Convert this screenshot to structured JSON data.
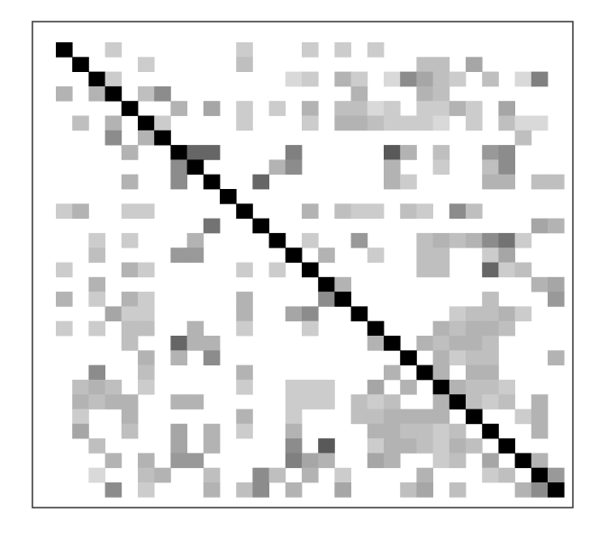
{
  "chart_data": {
    "type": "heatmap",
    "n": 31,
    "title": "",
    "xlabel": "",
    "ylabel": "",
    "value_range": [
      0,
      1
    ],
    "colors": {
      "low": "#ffffff",
      "high": "#000000",
      "frame": "#333333",
      "background": "#ffffff"
    },
    "grid": false,
    "legend": "none",
    "cells": [
      [
        0,
        0,
        1.0
      ],
      [
        0,
        3,
        0.2
      ],
      [
        0,
        11,
        0.2
      ],
      [
        0,
        15,
        0.2
      ],
      [
        0,
        17,
        0.2
      ],
      [
        0,
        19,
        0.2
      ],
      [
        1,
        1,
        1.0
      ],
      [
        1,
        5,
        0.2
      ],
      [
        1,
        11,
        0.25
      ],
      [
        1,
        22,
        0.25
      ],
      [
        1,
        23,
        0.25
      ],
      [
        1,
        25,
        0.35
      ],
      [
        2,
        2,
        1.0
      ],
      [
        2,
        3,
        0.2
      ],
      [
        2,
        14,
        0.15
      ],
      [
        2,
        15,
        0.2
      ],
      [
        2,
        17,
        0.3
      ],
      [
        2,
        18,
        0.2
      ],
      [
        2,
        20,
        0.15
      ],
      [
        2,
        21,
        0.45
      ],
      [
        2,
        22,
        0.35
      ],
      [
        2,
        23,
        0.25
      ],
      [
        2,
        24,
        0.2
      ],
      [
        2,
        26,
        0.25
      ],
      [
        2,
        28,
        0.15
      ],
      [
        2,
        29,
        0.5
      ],
      [
        3,
        0,
        0.3
      ],
      [
        3,
        2,
        0.3
      ],
      [
        3,
        3,
        1.0
      ],
      [
        3,
        5,
        0.25
      ],
      [
        3,
        6,
        0.45
      ],
      [
        3,
        18,
        0.3
      ],
      [
        3,
        22,
        0.3
      ],
      [
        3,
        23,
        0.25
      ],
      [
        4,
        4,
        1.0
      ],
      [
        4,
        7,
        0.3
      ],
      [
        4,
        9,
        0.35
      ],
      [
        4,
        11,
        0.2
      ],
      [
        4,
        13,
        0.2
      ],
      [
        4,
        15,
        0.3
      ],
      [
        4,
        17,
        0.25
      ],
      [
        4,
        18,
        0.25
      ],
      [
        4,
        19,
        0.15
      ],
      [
        4,
        20,
        0.2
      ],
      [
        4,
        22,
        0.2
      ],
      [
        4,
        23,
        0.2
      ],
      [
        4,
        24,
        0.3
      ],
      [
        4,
        25,
        0.2
      ],
      [
        4,
        27,
        0.35
      ],
      [
        5,
        1,
        0.25
      ],
      [
        5,
        3,
        0.3
      ],
      [
        5,
        5,
        1.0
      ],
      [
        5,
        6,
        0.2
      ],
      [
        5,
        11,
        0.2
      ],
      [
        5,
        15,
        0.2
      ],
      [
        5,
        17,
        0.3
      ],
      [
        5,
        18,
        0.3
      ],
      [
        5,
        19,
        0.25
      ],
      [
        5,
        20,
        0.2
      ],
      [
        5,
        21,
        0.2
      ],
      [
        5,
        22,
        0.2
      ],
      [
        5,
        23,
        0.15
      ],
      [
        5,
        25,
        0.2
      ],
      [
        5,
        27,
        0.25
      ],
      [
        5,
        28,
        0.15
      ],
      [
        5,
        29,
        0.15
      ],
      [
        6,
        3,
        0.45
      ],
      [
        6,
        5,
        0.3
      ],
      [
        6,
        6,
        1.0
      ],
      [
        6,
        28,
        0.25
      ],
      [
        7,
        4,
        0.3
      ],
      [
        7,
        7,
        1.0
      ],
      [
        7,
        8,
        0.6
      ],
      [
        7,
        9,
        0.6
      ],
      [
        7,
        14,
        0.5
      ],
      [
        7,
        20,
        0.65
      ],
      [
        7,
        21,
        0.3
      ],
      [
        7,
        23,
        0.25
      ],
      [
        7,
        26,
        0.4
      ],
      [
        7,
        27,
        0.45
      ],
      [
        8,
        7,
        0.45
      ],
      [
        8,
        8,
        1.0
      ],
      [
        8,
        13,
        0.3
      ],
      [
        8,
        14,
        0.45
      ],
      [
        8,
        20,
        0.3
      ],
      [
        8,
        23,
        0.2
      ],
      [
        8,
        26,
        0.25
      ],
      [
        8,
        27,
        0.45
      ],
      [
        9,
        4,
        0.3
      ],
      [
        9,
        7,
        0.45
      ],
      [
        9,
        9,
        1.0
      ],
      [
        9,
        12,
        0.6
      ],
      [
        9,
        20,
        0.3
      ],
      [
        9,
        21,
        0.2
      ],
      [
        9,
        26,
        0.3
      ],
      [
        9,
        27,
        0.3
      ],
      [
        9,
        29,
        0.25
      ],
      [
        9,
        30,
        0.25
      ],
      [
        10,
        10,
        1.0
      ],
      [
        11,
        0,
        0.2
      ],
      [
        11,
        1,
        0.3
      ],
      [
        11,
        4,
        0.2
      ],
      [
        11,
        5,
        0.2
      ],
      [
        11,
        11,
        1.0
      ],
      [
        11,
        15,
        0.3
      ],
      [
        11,
        17,
        0.25
      ],
      [
        11,
        18,
        0.2
      ],
      [
        11,
        19,
        0.2
      ],
      [
        11,
        21,
        0.25
      ],
      [
        11,
        22,
        0.2
      ],
      [
        11,
        24,
        0.45
      ],
      [
        11,
        25,
        0.25
      ],
      [
        12,
        9,
        0.55
      ],
      [
        12,
        12,
        1.0
      ],
      [
        12,
        29,
        0.35
      ],
      [
        12,
        30,
        0.3
      ],
      [
        13,
        2,
        0.2
      ],
      [
        13,
        4,
        0.2
      ],
      [
        13,
        8,
        0.3
      ],
      [
        13,
        13,
        1.0
      ],
      [
        13,
        15,
        0.2
      ],
      [
        13,
        18,
        0.4
      ],
      [
        13,
        22,
        0.25
      ],
      [
        13,
        23,
        0.3
      ],
      [
        13,
        24,
        0.25
      ],
      [
        13,
        25,
        0.3
      ],
      [
        13,
        26,
        0.45
      ],
      [
        13,
        27,
        0.55
      ],
      [
        13,
        28,
        0.2
      ],
      [
        14,
        2,
        0.25
      ],
      [
        14,
        7,
        0.4
      ],
      [
        14,
        8,
        0.4
      ],
      [
        14,
        14,
        1.0
      ],
      [
        14,
        16,
        0.3
      ],
      [
        14,
        19,
        0.2
      ],
      [
        14,
        22,
        0.25
      ],
      [
        14,
        23,
        0.25
      ],
      [
        14,
        26,
        0.2
      ],
      [
        14,
        27,
        0.35
      ],
      [
        15,
        0,
        0.2
      ],
      [
        15,
        4,
        0.3
      ],
      [
        15,
        5,
        0.2
      ],
      [
        15,
        11,
        0.2
      ],
      [
        15,
        13,
        0.2
      ],
      [
        15,
        15,
        1.0
      ],
      [
        15,
        22,
        0.25
      ],
      [
        15,
        23,
        0.25
      ],
      [
        15,
        26,
        0.6
      ],
      [
        15,
        27,
        0.2
      ],
      [
        15,
        28,
        0.25
      ],
      [
        16,
        2,
        0.3
      ],
      [
        16,
        16,
        1.0
      ],
      [
        16,
        17,
        0.3
      ],
      [
        16,
        29,
        0.3
      ],
      [
        16,
        30,
        0.35
      ],
      [
        17,
        0,
        0.3
      ],
      [
        17,
        2,
        0.2
      ],
      [
        17,
        4,
        0.3
      ],
      [
        17,
        5,
        0.2
      ],
      [
        17,
        11,
        0.3
      ],
      [
        17,
        16,
        0.45
      ],
      [
        17,
        17,
        1.0
      ],
      [
        17,
        26,
        0.25
      ],
      [
        17,
        30,
        0.4
      ],
      [
        18,
        3,
        0.35
      ],
      [
        18,
        4,
        0.2
      ],
      [
        18,
        5,
        0.2
      ],
      [
        18,
        11,
        0.3
      ],
      [
        18,
        14,
        0.35
      ],
      [
        18,
        15,
        0.45
      ],
      [
        18,
        18,
        1.0
      ],
      [
        18,
        24,
        0.2
      ],
      [
        18,
        25,
        0.25
      ],
      [
        18,
        26,
        0.25
      ],
      [
        18,
        27,
        0.3
      ],
      [
        18,
        28,
        0.2
      ],
      [
        19,
        0,
        0.2
      ],
      [
        19,
        2,
        0.2
      ],
      [
        19,
        4,
        0.25
      ],
      [
        19,
        5,
        0.25
      ],
      [
        19,
        8,
        0.3
      ],
      [
        19,
        11,
        0.2
      ],
      [
        19,
        15,
        0.2
      ],
      [
        19,
        19,
        1.0
      ],
      [
        19,
        23,
        0.3
      ],
      [
        19,
        24,
        0.25
      ],
      [
        19,
        25,
        0.3
      ],
      [
        19,
        26,
        0.3
      ],
      [
        19,
        27,
        0.25
      ],
      [
        20,
        4,
        0.25
      ],
      [
        20,
        7,
        0.6
      ],
      [
        20,
        8,
        0.3
      ],
      [
        20,
        9,
        0.3
      ],
      [
        20,
        19,
        0.3
      ],
      [
        20,
        20,
        1.0
      ],
      [
        20,
        22,
        0.3
      ],
      [
        20,
        23,
        0.25
      ],
      [
        20,
        24,
        0.3
      ],
      [
        20,
        25,
        0.3
      ],
      [
        20,
        26,
        0.25
      ],
      [
        21,
        5,
        0.3
      ],
      [
        21,
        7,
        0.3
      ],
      [
        21,
        9,
        0.45
      ],
      [
        21,
        21,
        1.0
      ],
      [
        21,
        23,
        0.3
      ],
      [
        21,
        24,
        0.2
      ],
      [
        21,
        25,
        0.25
      ],
      [
        21,
        26,
        0.25
      ],
      [
        21,
        30,
        0.3
      ],
      [
        22,
        2,
        0.45
      ],
      [
        22,
        5,
        0.25
      ],
      [
        22,
        11,
        0.3
      ],
      [
        22,
        20,
        0.3
      ],
      [
        22,
        22,
        1.0
      ],
      [
        22,
        23,
        0.3
      ],
      [
        22,
        25,
        0.3
      ],
      [
        22,
        26,
        0.3
      ],
      [
        23,
        1,
        0.25
      ],
      [
        23,
        2,
        0.3
      ],
      [
        23,
        3,
        0.25
      ],
      [
        23,
        5,
        0.2
      ],
      [
        23,
        11,
        0.2
      ],
      [
        23,
        14,
        0.2
      ],
      [
        23,
        15,
        0.2
      ],
      [
        23,
        16,
        0.2
      ],
      [
        23,
        19,
        0.35
      ],
      [
        23,
        21,
        0.3
      ],
      [
        23,
        23,
        1.0
      ],
      [
        23,
        24,
        0.3
      ],
      [
        23,
        25,
        0.25
      ],
      [
        23,
        26,
        0.25
      ],
      [
        23,
        27,
        0.2
      ],
      [
        24,
        1,
        0.3
      ],
      [
        24,
        2,
        0.25
      ],
      [
        24,
        3,
        0.3
      ],
      [
        24,
        4,
        0.3
      ],
      [
        24,
        7,
        0.3
      ],
      [
        24,
        8,
        0.3
      ],
      [
        24,
        14,
        0.2
      ],
      [
        24,
        15,
        0.2
      ],
      [
        24,
        16,
        0.2
      ],
      [
        24,
        18,
        0.25
      ],
      [
        24,
        19,
        0.2
      ],
      [
        24,
        20,
        0.25
      ],
      [
        24,
        23,
        0.3
      ],
      [
        24,
        24,
        1.0
      ],
      [
        24,
        25,
        0.25
      ],
      [
        24,
        26,
        0.2
      ],
      [
        24,
        27,
        0.25
      ],
      [
        24,
        29,
        0.3
      ],
      [
        25,
        1,
        0.2
      ],
      [
        25,
        4,
        0.3
      ],
      [
        25,
        11,
        0.3
      ],
      [
        25,
        14,
        0.2
      ],
      [
        25,
        18,
        0.25
      ],
      [
        25,
        19,
        0.25
      ],
      [
        25,
        20,
        0.3
      ],
      [
        25,
        21,
        0.3
      ],
      [
        25,
        22,
        0.3
      ],
      [
        25,
        23,
        0.3
      ],
      [
        25,
        25,
        1.0
      ],
      [
        25,
        28,
        0.2
      ],
      [
        25,
        29,
        0.3
      ],
      [
        26,
        1,
        0.35
      ],
      [
        26,
        4,
        0.25
      ],
      [
        26,
        7,
        0.35
      ],
      [
        26,
        9,
        0.3
      ],
      [
        26,
        11,
        0.2
      ],
      [
        26,
        14,
        0.3
      ],
      [
        26,
        19,
        0.3
      ],
      [
        26,
        20,
        0.3
      ],
      [
        26,
        21,
        0.25
      ],
      [
        26,
        22,
        0.25
      ],
      [
        26,
        23,
        0.2
      ],
      [
        26,
        24,
        0.25
      ],
      [
        26,
        26,
        1.0
      ],
      [
        26,
        29,
        0.3
      ],
      [
        27,
        2,
        0.25
      ],
      [
        27,
        7,
        0.35
      ],
      [
        27,
        9,
        0.3
      ],
      [
        27,
        14,
        0.45
      ],
      [
        27,
        16,
        0.65
      ],
      [
        27,
        19,
        0.2
      ],
      [
        27,
        20,
        0.3
      ],
      [
        27,
        21,
        0.3
      ],
      [
        27,
        22,
        0.25
      ],
      [
        27,
        23,
        0.2
      ],
      [
        27,
        24,
        0.3
      ],
      [
        27,
        25,
        0.25
      ],
      [
        27,
        27,
        1.0
      ],
      [
        28,
        3,
        0.3
      ],
      [
        28,
        5,
        0.3
      ],
      [
        28,
        7,
        0.4
      ],
      [
        28,
        8,
        0.4
      ],
      [
        28,
        14,
        0.5
      ],
      [
        28,
        15,
        0.35
      ],
      [
        28,
        16,
        0.3
      ],
      [
        28,
        19,
        0.35
      ],
      [
        28,
        20,
        0.3
      ],
      [
        28,
        23,
        0.2
      ],
      [
        28,
        24,
        0.25
      ],
      [
        28,
        26,
        0.35
      ],
      [
        28,
        28,
        1.0
      ],
      [
        28,
        29,
        0.3
      ],
      [
        29,
        2,
        0.15
      ],
      [
        29,
        5,
        0.25
      ],
      [
        29,
        6,
        0.3
      ],
      [
        29,
        9,
        0.25
      ],
      [
        29,
        12,
        0.45
      ],
      [
        29,
        13,
        0.25
      ],
      [
        29,
        15,
        0.3
      ],
      [
        29,
        17,
        0.2
      ],
      [
        29,
        22,
        0.3
      ],
      [
        29,
        26,
        0.2
      ],
      [
        29,
        27,
        0.25
      ],
      [
        29,
        29,
        1.0
      ],
      [
        29,
        30,
        0.4
      ],
      [
        30,
        3,
        0.45
      ],
      [
        30,
        5,
        0.2
      ],
      [
        30,
        9,
        0.3
      ],
      [
        30,
        11,
        0.25
      ],
      [
        30,
        12,
        0.45
      ],
      [
        30,
        14,
        0.3
      ],
      [
        30,
        17,
        0.35
      ],
      [
        30,
        21,
        0.25
      ],
      [
        30,
        22,
        0.35
      ],
      [
        30,
        24,
        0.25
      ],
      [
        30,
        28,
        0.3
      ],
      [
        30,
        29,
        0.45
      ],
      [
        30,
        30,
        1.0
      ]
    ]
  }
}
